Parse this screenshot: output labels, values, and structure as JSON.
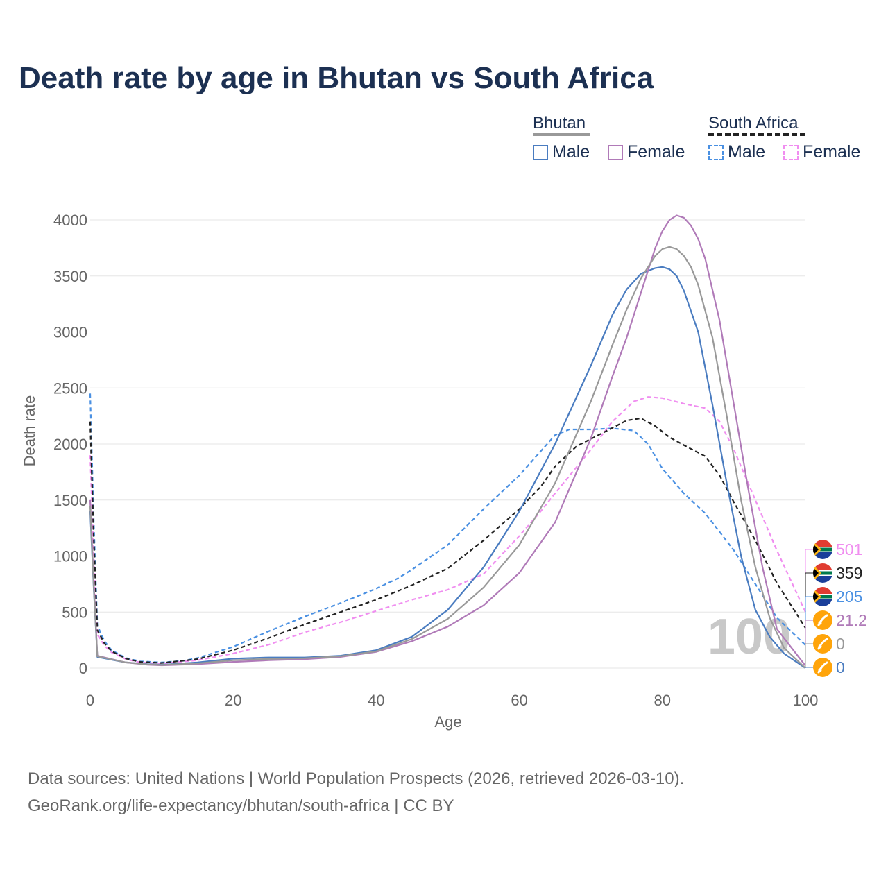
{
  "title": "Death rate by age in Bhutan vs South Africa",
  "legend": {
    "groups": [
      {
        "name": "Bhutan",
        "line_color": "#999999",
        "line_style": "solid",
        "items": [
          {
            "label": "Male",
            "color": "#4a7cc0",
            "style": "solid"
          },
          {
            "label": "Female",
            "color": "#b07ab8",
            "style": "solid"
          }
        ]
      },
      {
        "name": "South Africa",
        "line_color": "#222222",
        "line_style": "dashed",
        "items": [
          {
            "label": "Male",
            "color": "#4a90e2",
            "style": "dashed"
          },
          {
            "label": "Female",
            "color": "#f08ef0",
            "style": "dashed"
          }
        ]
      }
    ]
  },
  "footer": {
    "line1": "Data sources: United Nations | World Population Prospects (2026, retrieved 2026-03-10).",
    "line2": "GeoRank.org/life-expectancy/bhutan/south-africa | CC BY"
  },
  "chart_data": {
    "type": "line",
    "title": "Death rate by age in Bhutan vs South Africa",
    "xlabel": "Age",
    "ylabel": "Death rate",
    "xlim": [
      0,
      100
    ],
    "ylim": [
      0,
      4000
    ],
    "xticks": [
      0,
      20,
      40,
      60,
      80,
      100
    ],
    "yticks": [
      0,
      500,
      1000,
      1500,
      2000,
      2500,
      3000,
      3500,
      4000
    ],
    "grid": "horizontal",
    "watermark": "100",
    "series": [
      {
        "name": "South Africa Male",
        "color": "#4a90e2",
        "dash": true,
        "points": [
          [
            0,
            2450
          ],
          [
            0.5,
            1300
          ],
          [
            1,
            380
          ],
          [
            2,
            240
          ],
          [
            3,
            160
          ],
          [
            5,
            90
          ],
          [
            7,
            60
          ],
          [
            10,
            50
          ],
          [
            13,
            65
          ],
          [
            15,
            90
          ],
          [
            20,
            190
          ],
          [
            25,
            330
          ],
          [
            30,
            460
          ],
          [
            35,
            580
          ],
          [
            40,
            710
          ],
          [
            43,
            800
          ],
          [
            45,
            880
          ],
          [
            50,
            1100
          ],
          [
            55,
            1420
          ],
          [
            60,
            1720
          ],
          [
            65,
            2080
          ],
          [
            67,
            2130
          ],
          [
            70,
            2130
          ],
          [
            73,
            2140
          ],
          [
            76,
            2120
          ],
          [
            78,
            2000
          ],
          [
            80,
            1780
          ],
          [
            83,
            1560
          ],
          [
            86,
            1380
          ],
          [
            90,
            1050
          ],
          [
            93,
            750
          ],
          [
            96,
            450
          ],
          [
            100,
            205
          ]
        ]
      },
      {
        "name": "South Africa Female",
        "color": "#f08ef0",
        "dash": true,
        "points": [
          [
            0,
            1900
          ],
          [
            0.5,
            1000
          ],
          [
            1,
            300
          ],
          [
            2,
            200
          ],
          [
            3,
            140
          ],
          [
            5,
            80
          ],
          [
            7,
            50
          ],
          [
            10,
            40
          ],
          [
            15,
            70
          ],
          [
            20,
            130
          ],
          [
            25,
            210
          ],
          [
            30,
            320
          ],
          [
            35,
            410
          ],
          [
            40,
            510
          ],
          [
            45,
            610
          ],
          [
            50,
            700
          ],
          [
            55,
            840
          ],
          [
            60,
            1180
          ],
          [
            63,
            1400
          ],
          [
            65,
            1560
          ],
          [
            70,
            1950
          ],
          [
            73,
            2200
          ],
          [
            76,
            2380
          ],
          [
            78,
            2420
          ],
          [
            80,
            2410
          ],
          [
            83,
            2360
          ],
          [
            86,
            2320
          ],
          [
            88,
            2200
          ],
          [
            90,
            1950
          ],
          [
            93,
            1500
          ],
          [
            96,
            1050
          ],
          [
            100,
            501
          ]
        ]
      },
      {
        "name": "South Africa Total",
        "color": "#222222",
        "dash": true,
        "points": [
          [
            0,
            2200
          ],
          [
            0.5,
            1150
          ],
          [
            1,
            340
          ],
          [
            2,
            220
          ],
          [
            3,
            150
          ],
          [
            5,
            85
          ],
          [
            7,
            55
          ],
          [
            10,
            45
          ],
          [
            15,
            80
          ],
          [
            20,
            160
          ],
          [
            25,
            270
          ],
          [
            30,
            390
          ],
          [
            35,
            500
          ],
          [
            40,
            610
          ],
          [
            45,
            740
          ],
          [
            50,
            890
          ],
          [
            55,
            1140
          ],
          [
            60,
            1420
          ],
          [
            63,
            1620
          ],
          [
            65,
            1800
          ],
          [
            68,
            1980
          ],
          [
            72,
            2110
          ],
          [
            75,
            2210
          ],
          [
            77,
            2230
          ],
          [
            79,
            2160
          ],
          [
            81,
            2060
          ],
          [
            83,
            1990
          ],
          [
            86,
            1890
          ],
          [
            88,
            1720
          ],
          [
            90,
            1480
          ],
          [
            93,
            1140
          ],
          [
            96,
            760
          ],
          [
            100,
            359
          ]
        ]
      },
      {
        "name": "Bhutan Male",
        "color": "#4a7cc0",
        "dash": false,
        "points": [
          [
            0,
            1400
          ],
          [
            0.5,
            700
          ],
          [
            1,
            100
          ],
          [
            3,
            75
          ],
          [
            5,
            50
          ],
          [
            8,
            35
          ],
          [
            10,
            30
          ],
          [
            15,
            50
          ],
          [
            20,
            85
          ],
          [
            25,
            95
          ],
          [
            30,
            95
          ],
          [
            35,
            110
          ],
          [
            40,
            160
          ],
          [
            45,
            280
          ],
          [
            50,
            520
          ],
          [
            55,
            900
          ],
          [
            60,
            1400
          ],
          [
            65,
            2000
          ],
          [
            70,
            2700
          ],
          [
            73,
            3150
          ],
          [
            75,
            3380
          ],
          [
            77,
            3520
          ],
          [
            79,
            3570
          ],
          [
            80,
            3580
          ],
          [
            81,
            3560
          ],
          [
            82,
            3500
          ],
          [
            83,
            3370
          ],
          [
            85,
            3000
          ],
          [
            87,
            2350
          ],
          [
            89,
            1650
          ],
          [
            91,
            1000
          ],
          [
            93,
            520
          ],
          [
            95,
            280
          ],
          [
            97,
            130
          ],
          [
            100,
            0
          ]
        ]
      },
      {
        "name": "Bhutan Female",
        "color": "#b07ab8",
        "dash": false,
        "points": [
          [
            0,
            1500
          ],
          [
            0.5,
            750
          ],
          [
            1,
            110
          ],
          [
            3,
            80
          ],
          [
            5,
            50
          ],
          [
            8,
            30
          ],
          [
            10,
            25
          ],
          [
            15,
            35
          ],
          [
            20,
            55
          ],
          [
            25,
            70
          ],
          [
            30,
            80
          ],
          [
            35,
            100
          ],
          [
            40,
            145
          ],
          [
            45,
            240
          ],
          [
            50,
            370
          ],
          [
            55,
            560
          ],
          [
            60,
            850
          ],
          [
            65,
            1300
          ],
          [
            70,
            2050
          ],
          [
            73,
            2600
          ],
          [
            75,
            2950
          ],
          [
            77,
            3350
          ],
          [
            79,
            3750
          ],
          [
            80,
            3900
          ],
          [
            81,
            4000
          ],
          [
            82,
            4040
          ],
          [
            83,
            4020
          ],
          [
            84,
            3950
          ],
          [
            85,
            3830
          ],
          [
            86,
            3650
          ],
          [
            88,
            3100
          ],
          [
            90,
            2350
          ],
          [
            92,
            1600
          ],
          [
            94,
            900
          ],
          [
            96,
            350
          ],
          [
            100,
            21.2
          ]
        ]
      },
      {
        "name": "Bhutan Total",
        "color": "#999999",
        "dash": false,
        "points": [
          [
            0,
            1450
          ],
          [
            0.5,
            720
          ],
          [
            1,
            105
          ],
          [
            3,
            78
          ],
          [
            5,
            50
          ],
          [
            8,
            33
          ],
          [
            10,
            28
          ],
          [
            15,
            42
          ],
          [
            20,
            70
          ],
          [
            25,
            82
          ],
          [
            30,
            88
          ],
          [
            35,
            105
          ],
          [
            40,
            150
          ],
          [
            45,
            260
          ],
          [
            50,
            440
          ],
          [
            55,
            720
          ],
          [
            60,
            1100
          ],
          [
            65,
            1650
          ],
          [
            70,
            2380
          ],
          [
            73,
            2880
          ],
          [
            75,
            3200
          ],
          [
            77,
            3480
          ],
          [
            79,
            3680
          ],
          [
            80,
            3740
          ],
          [
            81,
            3760
          ],
          [
            82,
            3740
          ],
          [
            83,
            3680
          ],
          [
            84,
            3580
          ],
          [
            85,
            3420
          ],
          [
            87,
            2950
          ],
          [
            89,
            2250
          ],
          [
            91,
            1500
          ],
          [
            93,
            900
          ],
          [
            95,
            450
          ],
          [
            97,
            180
          ],
          [
            100,
            0
          ]
        ]
      }
    ],
    "end_labels": [
      {
        "label": "501",
        "value": 501,
        "country": "South Africa",
        "color": "#f08ef0"
      },
      {
        "label": "359",
        "value": 359,
        "country": "South Africa",
        "color": "#222222"
      },
      {
        "label": "205",
        "value": 205,
        "country": "South Africa",
        "color": "#4a90e2"
      },
      {
        "label": "21.2",
        "value": 21.2,
        "country": "Bhutan",
        "color": "#b07ab8"
      },
      {
        "label": "0",
        "value": 0,
        "country": "Bhutan",
        "color": "#999999"
      },
      {
        "label": "0",
        "value": 0,
        "country": "Bhutan",
        "color": "#4a7cc0"
      }
    ]
  }
}
